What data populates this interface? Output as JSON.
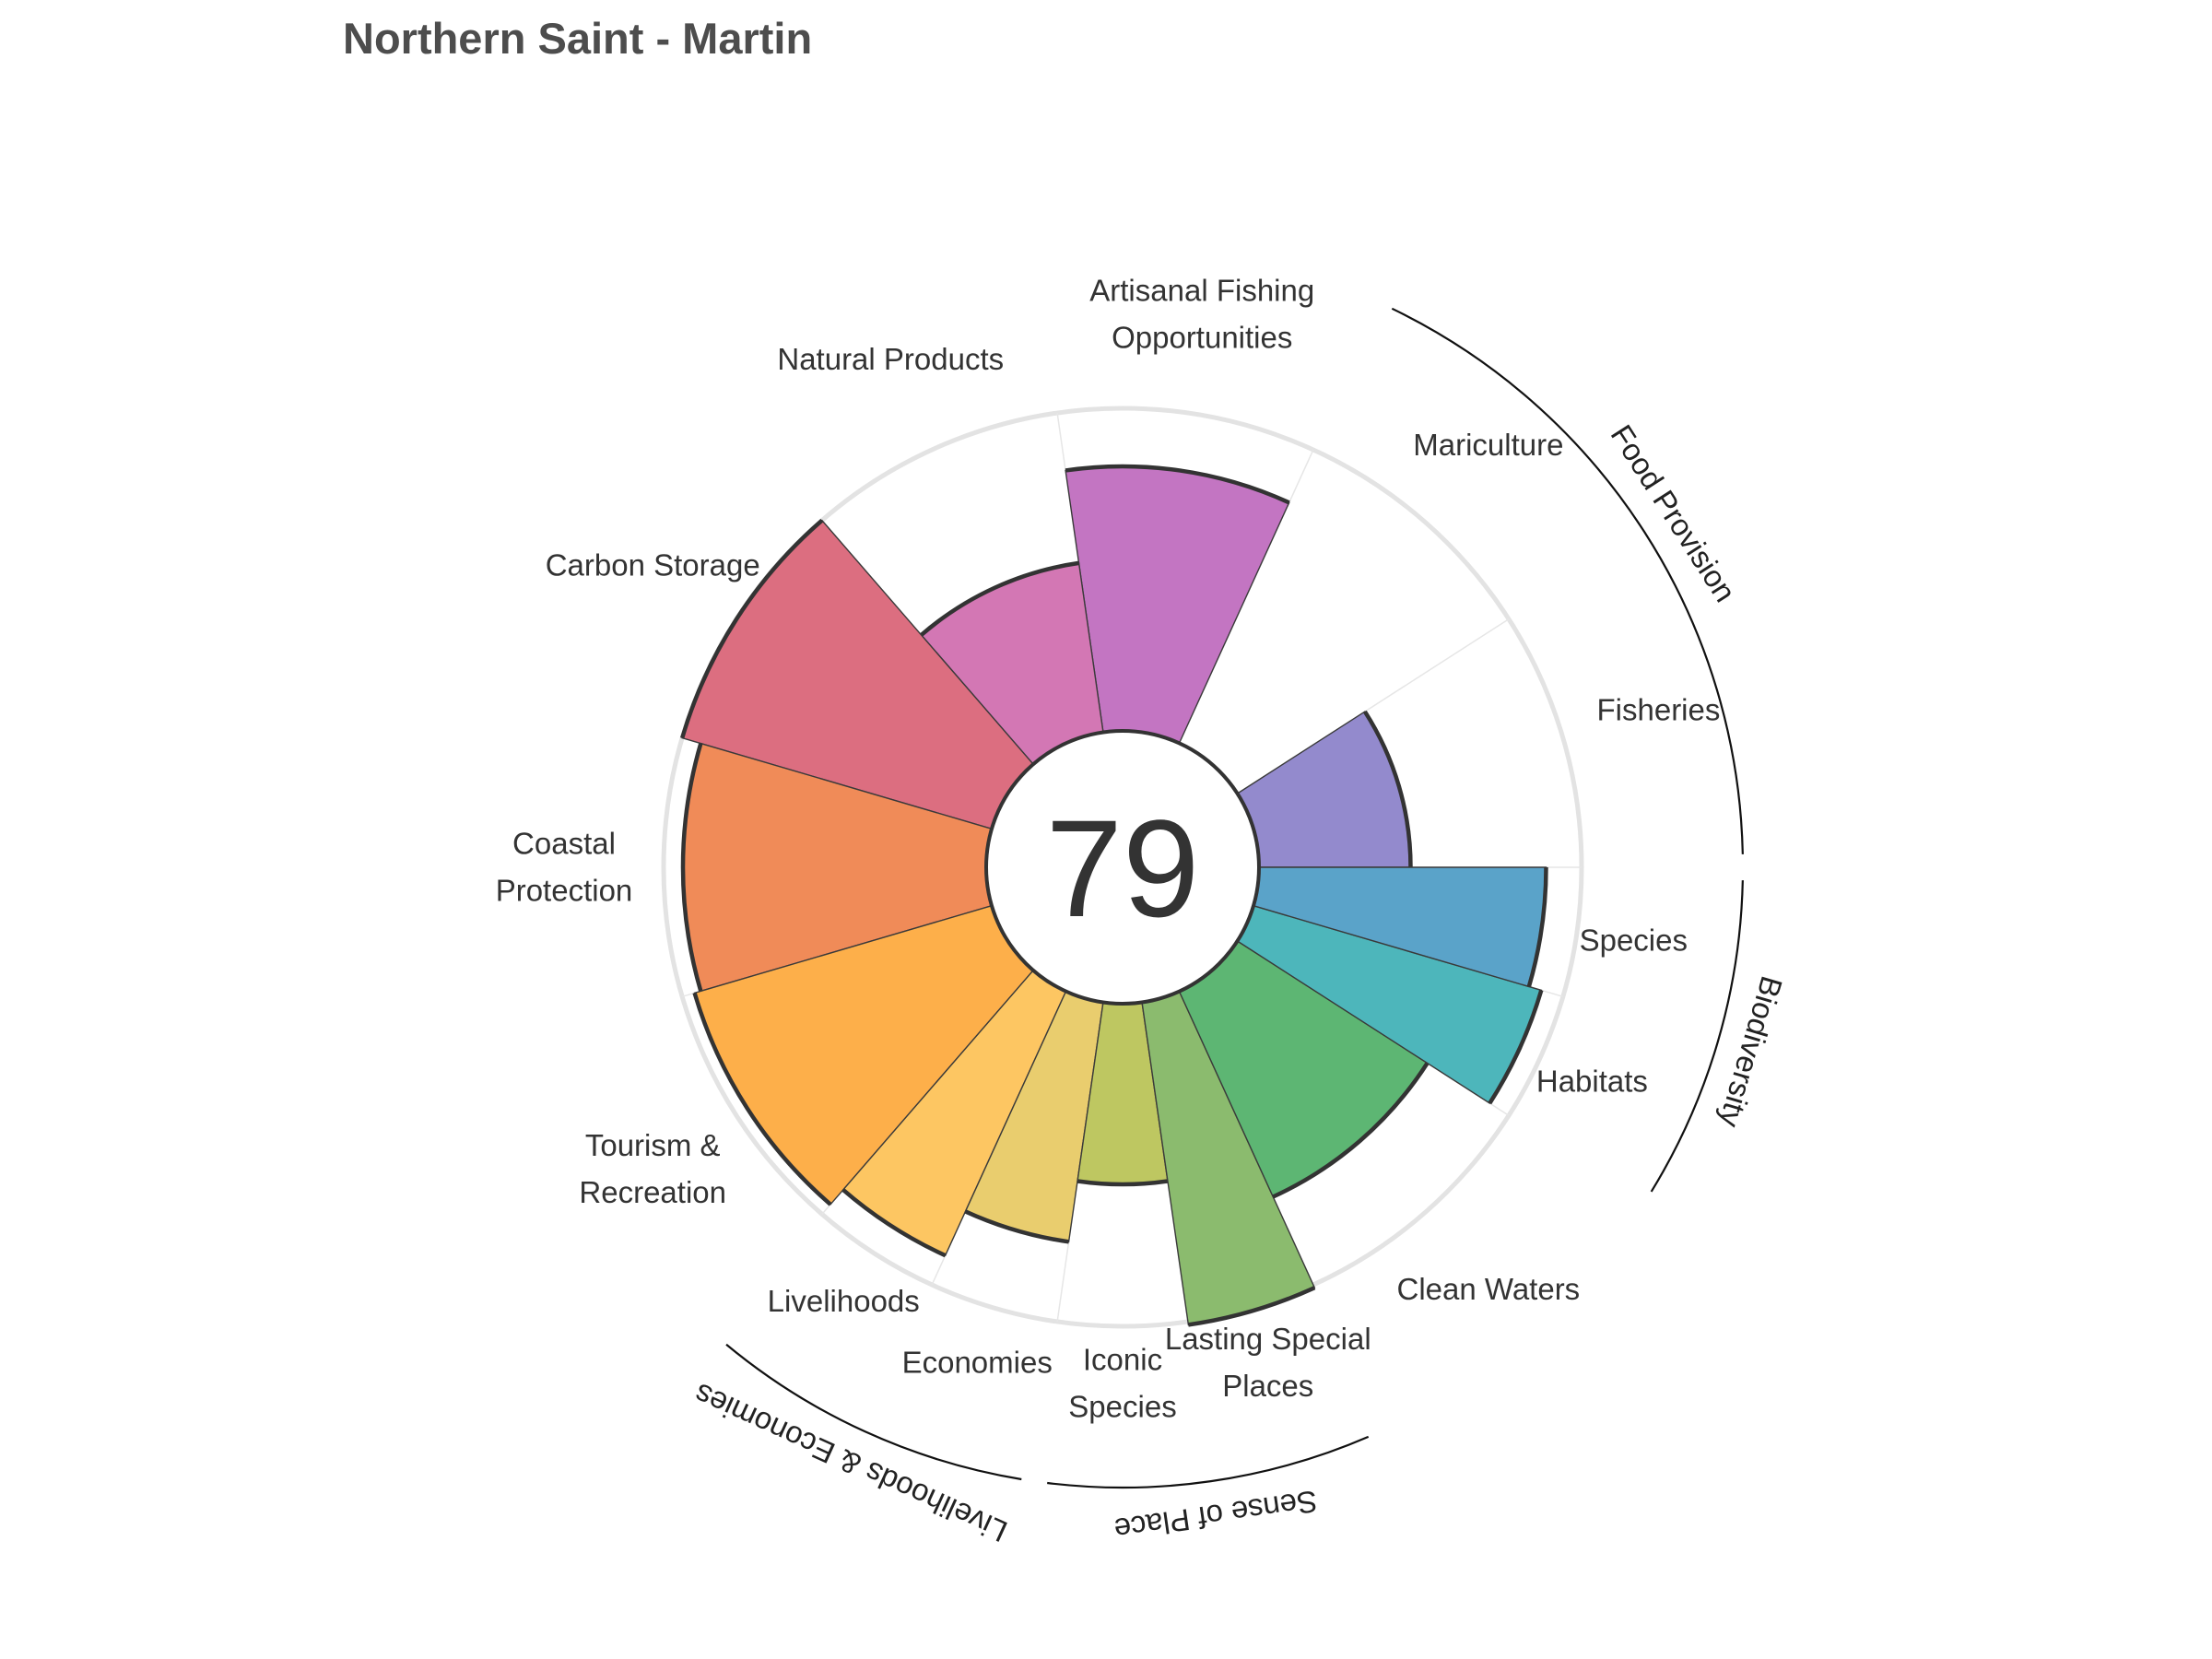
{
  "title": "Northern Saint - Martin",
  "chart_data": {
    "type": "polar-bar",
    "overall_score": "79",
    "max_value": 100,
    "categories": [
      {
        "name": "Fisheries",
        "label_lines": [
          "Fisheries"
        ],
        "value": 47,
        "weight": 1,
        "color": "#938ACD"
      },
      {
        "name": "Mariculture",
        "label_lines": [
          "Mariculture"
        ],
        "value": 0,
        "weight": 1,
        "color": "#A886C8"
      },
      {
        "name": "Artisanal Fishing Opportunities",
        "label_lines": [
          "Artisanal Fishing",
          "Opportunities"
        ],
        "value": 82,
        "weight": 1,
        "color": "#C375C2"
      },
      {
        "name": "Natural Products",
        "label_lines": [
          "Natural Products"
        ],
        "value": 53,
        "weight": 1,
        "color": "#D377B4"
      },
      {
        "name": "Carbon Storage",
        "label_lines": [
          "Carbon Storage"
        ],
        "value": 100,
        "weight": 1,
        "color": "#DC6E80"
      },
      {
        "name": "Coastal Protection",
        "label_lines": [
          "Coastal",
          "Protection"
        ],
        "value": 94,
        "weight": 1,
        "color": "#F08B58"
      },
      {
        "name": "Tourism & Recreation",
        "label_lines": [
          "Tourism &",
          "Recreation"
        ],
        "value": 96,
        "weight": 1,
        "color": "#FDAF4A"
      },
      {
        "name": "Livelihoods",
        "label_lines": [
          "Livelihoods"
        ],
        "value": 90,
        "weight": 0.5,
        "color": "#FDC662"
      },
      {
        "name": "Economies",
        "label_lines": [
          "Economies"
        ],
        "value": 75,
        "weight": 0.5,
        "color": "#E9CD6E"
      },
      {
        "name": "Iconic Species",
        "label_lines": [
          "Iconic",
          "Species"
        ],
        "value": 56,
        "weight": 0.5,
        "color": "#BEC761"
      },
      {
        "name": "Lasting Special Places",
        "label_lines": [
          "Lasting Special",
          "Places"
        ],
        "value": 101,
        "weight": 0.5,
        "color": "#8BBB6E"
      },
      {
        "name": "Clean Waters",
        "label_lines": [
          "Clean Waters"
        ],
        "value": 70,
        "weight": 1,
        "color": "#5DB673"
      },
      {
        "name": "Habitats",
        "label_lines": [
          "Habitats"
        ],
        "value": 93,
        "weight": 0.5,
        "color": "#4DB6BB"
      },
      {
        "name": "Species",
        "label_lines": [
          "Species"
        ],
        "value": 89,
        "weight": 0.5,
        "color": "#5AA3C9"
      }
    ],
    "groups": [
      {
        "name": "Food Provision",
        "members": [
          "Fisheries",
          "Mariculture"
        ]
      },
      {
        "name": "Biodiversity",
        "members": [
          "Habitats",
          "Species"
        ]
      },
      {
        "name": "Sense of Place",
        "members": [
          "Iconic Species",
          "Lasting Special Places"
        ]
      },
      {
        "name": "Livelihoods & Economies",
        "members": [
          "Livelihoods",
          "Economies"
        ]
      }
    ]
  }
}
